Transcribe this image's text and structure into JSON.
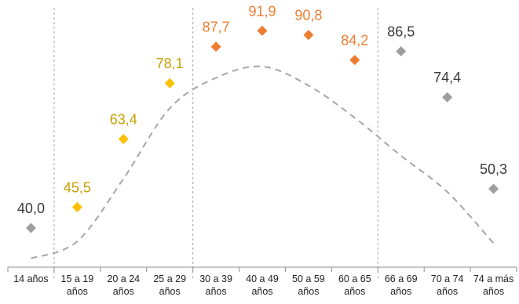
{
  "chart_data": {
    "type": "scatter",
    "title": "",
    "xlabel": "",
    "ylabel": "",
    "categories": [
      "14 años",
      "15 a 19 años",
      "20 a 24 años",
      "25 a 29 años",
      "30 a 39 años",
      "40 a 49 años",
      "50 a 59 años",
      "60 a 65 años",
      "66 a 69 años",
      "70 a 74 años",
      "74 a más años"
    ],
    "ylim": [
      20,
      100
    ],
    "grid": false,
    "legend": "none",
    "series": [
      {
        "color": "#9e9e9e",
        "label_color": "#3a3a3a",
        "points": [
          {
            "category": "14 años",
            "value": 40.0,
            "label": "40,0"
          },
          {
            "category": "66 a 69 años",
            "value": 86.5,
            "label": "86,5"
          },
          {
            "category": "70 a 74 años",
            "value": 74.4,
            "label": "74,4"
          },
          {
            "category": "74 a más años",
            "value": 50.3,
            "label": "50,3"
          }
        ]
      },
      {
        "color": "#ffc000",
        "label_color": "#c9a000",
        "points": [
          {
            "category": "15 a 19 años",
            "value": 45.5,
            "label": "45,5"
          },
          {
            "category": "20 a 24 años",
            "value": 63.4,
            "label": "63,4"
          },
          {
            "category": "25 a 29 años",
            "value": 78.1,
            "label": "78,1"
          }
        ]
      },
      {
        "color": "#ed7d31",
        "label_color": "#ed7d31",
        "points": [
          {
            "category": "30 a 39 años",
            "value": 87.7,
            "label": "87,7"
          },
          {
            "category": "40 a 49 años",
            "value": 91.9,
            "label": "91,9"
          },
          {
            "category": "50 a 59 años",
            "value": 90.8,
            "label": "90,8"
          },
          {
            "category": "60 a 65 años",
            "value": 84.2,
            "label": "84,2"
          }
        ]
      }
    ],
    "trendline": {
      "style": "dashed",
      "color": "#a6a6a6",
      "values": [
        32.0,
        36.5,
        53.0,
        71.5,
        79.5,
        82.5,
        77.5,
        69.0,
        59.0,
        49.5,
        36.0
      ]
    },
    "separators_after_categories": [
      "14 años",
      "25 a 29 años",
      "60 a 65 años"
    ]
  }
}
